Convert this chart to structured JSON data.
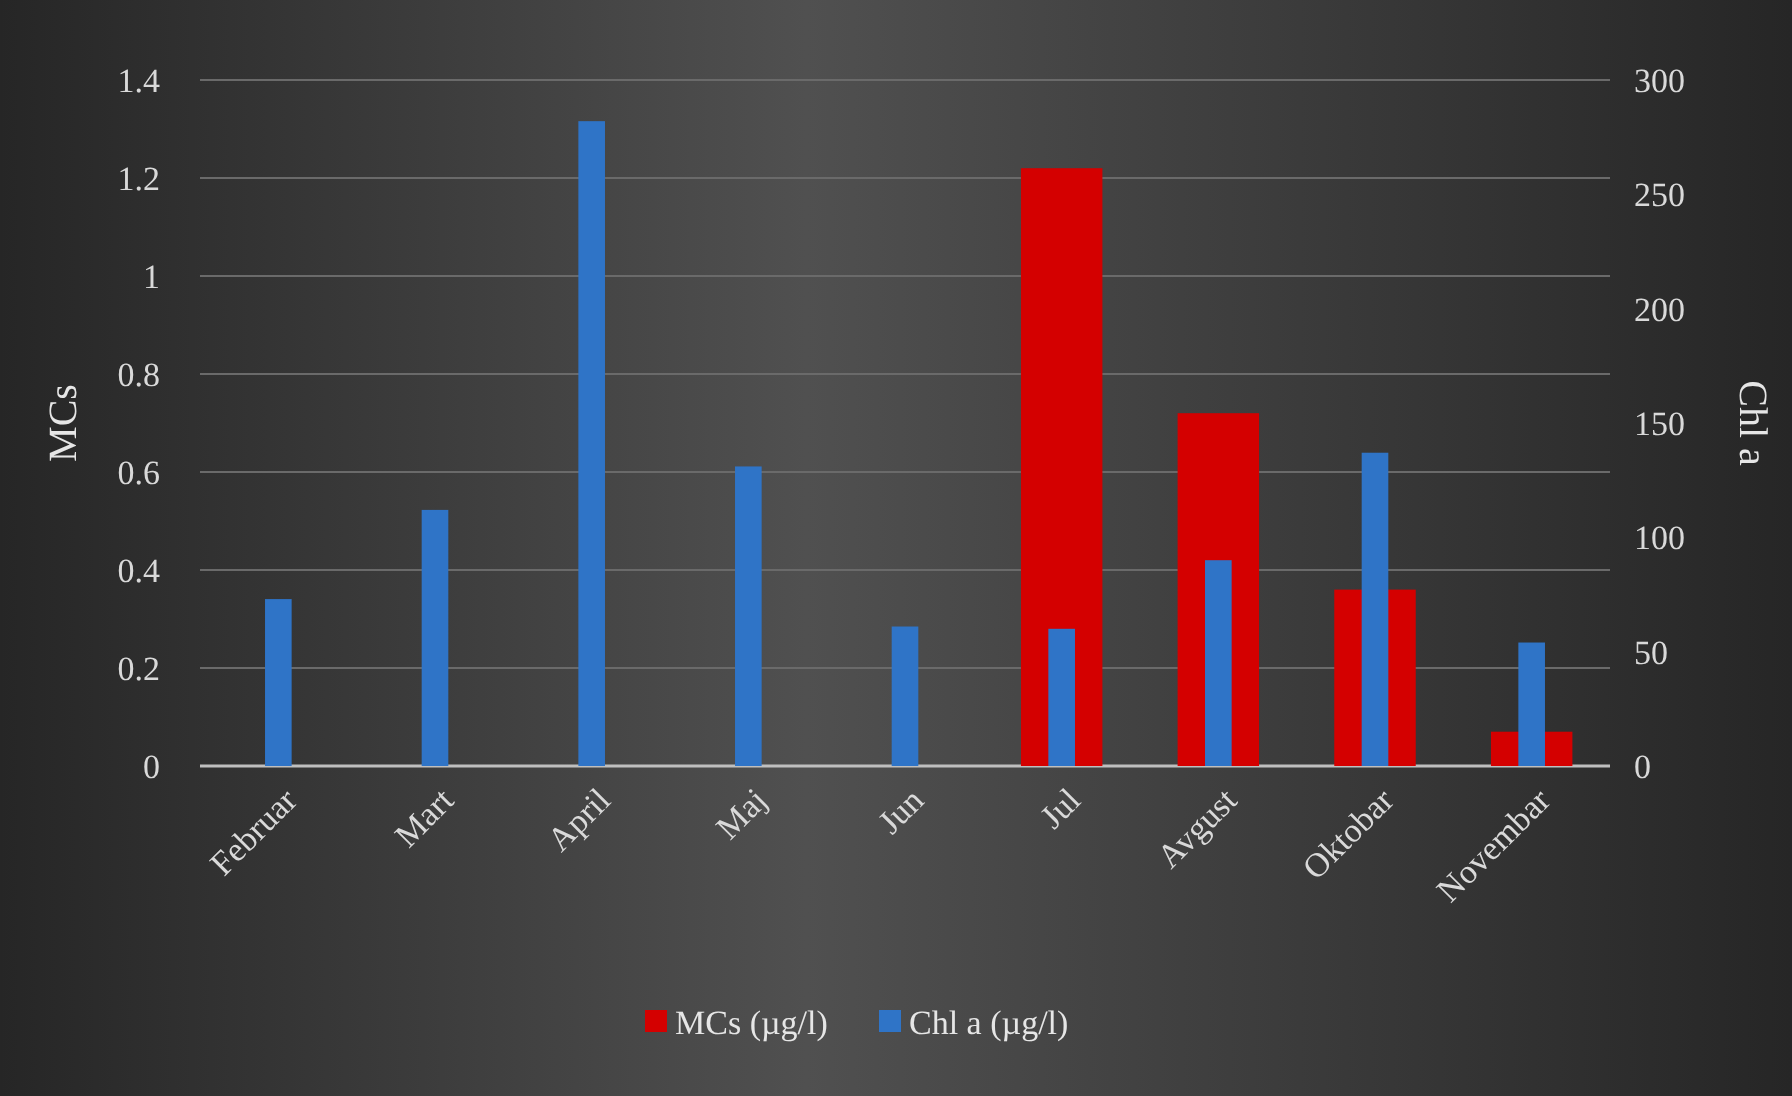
{
  "chart_data": {
    "type": "bar",
    "categories": [
      "Februar",
      "Mart",
      "April",
      "Maj",
      "Jun",
      "Jul",
      "Avgust",
      "Oktobar",
      "Novembar"
    ],
    "series": [
      {
        "name": "MCs (µg/l)",
        "color": "#d40000",
        "values": [
          null,
          null,
          null,
          null,
          null,
          1.22,
          0.72,
          0.36,
          0.07
        ]
      },
      {
        "name": "Chl a (µg/l)",
        "color": "#2f74c7",
        "axis": "y2",
        "values": [
          73,
          112,
          282,
          131,
          61,
          60,
          90,
          137,
          54
        ]
      }
    ],
    "ylabel": "MCs",
    "y2label": "Chl a",
    "ylim": [
      0,
      1.4
    ],
    "yticks": [
      0,
      {
        "value": 0.2,
        "label": "0.2"
      },
      {
        "value": 0.4,
        "label": "0.4"
      },
      {
        "value": 0.6,
        "label": "0.6"
      },
      {
        "value": 0.8,
        "label": "0.8"
      },
      1,
      {
        "value": 1.2,
        "label": "1.2"
      },
      {
        "value": 1.4,
        "label": "1.4"
      }
    ],
    "y2lim": [
      0,
      300
    ],
    "y2ticks": [
      0,
      50,
      100,
      150,
      200,
      250,
      300
    ],
    "grid": "y",
    "legend": "bottom"
  }
}
